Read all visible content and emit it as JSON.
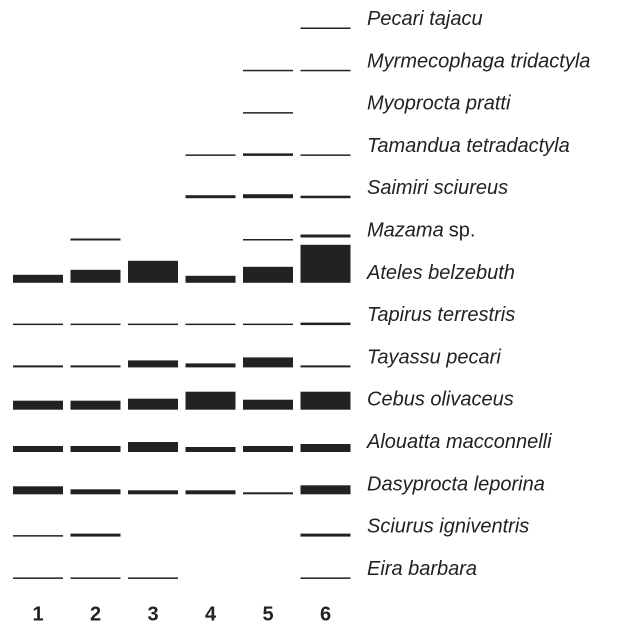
{
  "lanes": [
    "1",
    "2",
    "3",
    "4",
    "5",
    "6"
  ],
  "rows": [
    {
      "label": "Pecari tajacu"
    },
    {
      "label": "Myrmecophaga tridactyla"
    },
    {
      "label": "Myoprocta pratti"
    },
    {
      "label": "Tamandua tetradactyla"
    },
    {
      "label": "Saimiri sciureus"
    },
    {
      "label": "Mazama",
      "suffix": "sp."
    },
    {
      "label": "Ateles belzebuth"
    },
    {
      "label": "Tapirus terrestris"
    },
    {
      "label": "Tayassu pecari"
    },
    {
      "label": "Cebus olivaceus"
    },
    {
      "label": "Alouatta macconnelli"
    },
    {
      "label": "Dasyprocta leporina"
    },
    {
      "label": "Sciurus igniventris"
    },
    {
      "label": "Eira barbara"
    }
  ]
}
